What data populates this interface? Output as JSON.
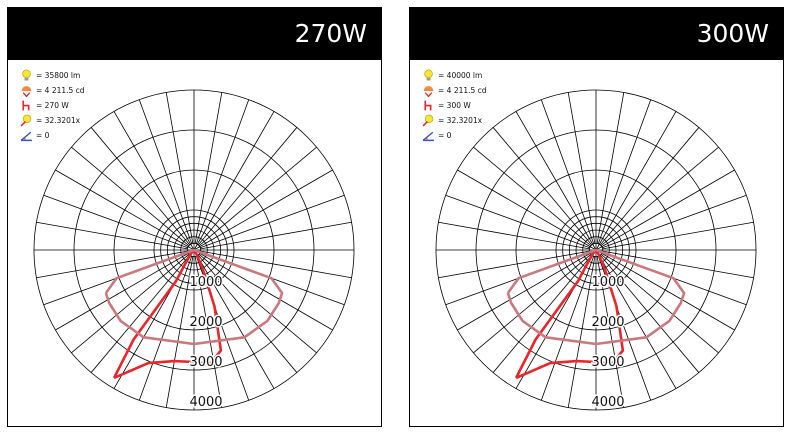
{
  "chart_data": [
    {
      "type": "polar",
      "title": "270W",
      "legend": [
        {
          "icon": "lightbulb-icon",
          "text": "= 35800 lm"
        },
        {
          "icon": "lamp-intensity-icon",
          "text": "= 4 211.5 cd"
        },
        {
          "icon": "power-icon",
          "text": "= 270 W"
        },
        {
          "icon": "efficacy-icon",
          "text": "= 32.3201x"
        },
        {
          "icon": "angle-icon",
          "text": "= 0"
        }
      ],
      "r_ticks": [
        1000,
        2000,
        3000,
        4000
      ],
      "r_max": 4000,
      "grid": true,
      "series": [
        {
          "color": "#e8262b",
          "points": [
            [
              -32,
              3770
            ],
            [
              -22,
              3050
            ],
            [
              -10,
              2820
            ],
            [
              0,
              2800
            ],
            [
              8,
              2870
            ],
            [
              15,
              2600
            ],
            [
              20,
              1500
            ],
            [
              25,
              500
            ],
            [
              35,
              80
            ],
            [
              0,
              0
            ],
            [
              -40,
              150
            ],
            [
              -30,
              900
            ],
            [
              -34,
              2700
            ],
            [
              -32,
              3770
            ]
          ]
        },
        {
          "color": "#c9787d",
          "points": [
            [
              -64,
              2450
            ],
            [
              -58,
              2500
            ],
            [
              -46,
              2550
            ],
            [
              -30,
              2520
            ],
            [
              0,
              2350
            ],
            [
              30,
              2520
            ],
            [
              46,
              2550
            ],
            [
              58,
              2500
            ],
            [
              64,
              2450
            ],
            [
              70,
              2060
            ],
            [
              90,
              0
            ],
            [
              -70,
              2060
            ],
            [
              -64,
              2450
            ]
          ]
        }
      ]
    },
    {
      "type": "polar",
      "title": "300W",
      "legend": [
        {
          "icon": "lightbulb-icon",
          "text": "= 40000 lm"
        },
        {
          "icon": "lamp-intensity-icon",
          "text": "= 4 211.5 cd"
        },
        {
          "icon": "power-icon",
          "text": "= 300 W"
        },
        {
          "icon": "efficacy-icon",
          "text": "= 32.3201x"
        },
        {
          "icon": "angle-icon",
          "text": "= 0"
        }
      ],
      "r_ticks": [
        1000,
        2000,
        3000,
        4000
      ],
      "r_max": 4000,
      "grid": true,
      "series": [
        {
          "color": "#e8262b",
          "points": [
            [
              -32,
              3770
            ],
            [
              -22,
              3050
            ],
            [
              -10,
              2820
            ],
            [
              0,
              2800
            ],
            [
              8,
              2870
            ],
            [
              15,
              2600
            ],
            [
              20,
              1500
            ],
            [
              25,
              500
            ],
            [
              35,
              80
            ],
            [
              0,
              0
            ],
            [
              -40,
              150
            ],
            [
              -30,
              900
            ],
            [
              -34,
              2700
            ],
            [
              -32,
              3770
            ]
          ]
        },
        {
          "color": "#c9787d",
          "points": [
            [
              -64,
              2450
            ],
            [
              -58,
              2500
            ],
            [
              -46,
              2550
            ],
            [
              -30,
              2520
            ],
            [
              0,
              2350
            ],
            [
              30,
              2520
            ],
            [
              46,
              2550
            ],
            [
              58,
              2500
            ],
            [
              64,
              2450
            ],
            [
              70,
              2060
            ],
            [
              90,
              0
            ],
            [
              -70,
              2060
            ],
            [
              -64,
              2450
            ]
          ]
        }
      ]
    }
  ]
}
